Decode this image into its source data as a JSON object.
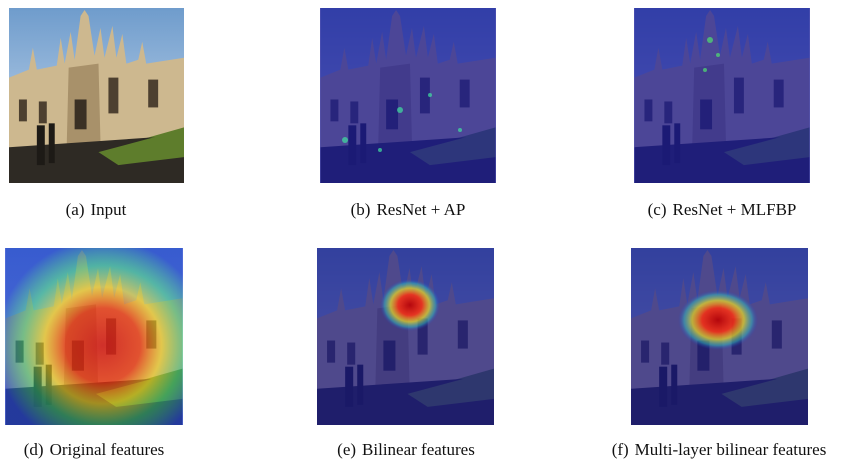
{
  "figure": {
    "panels": [
      {
        "label": "(a)",
        "caption": "Input"
      },
      {
        "label": "(b)",
        "caption": "ResNet + AP"
      },
      {
        "label": "(c)",
        "caption": "ResNet + MLFBP"
      },
      {
        "label": "(d)",
        "caption": "Original features"
      },
      {
        "label": "(e)",
        "caption": "Bilinear features"
      },
      {
        "label": "(f)",
        "caption": "Multi-layer bilinear features"
      }
    ]
  }
}
